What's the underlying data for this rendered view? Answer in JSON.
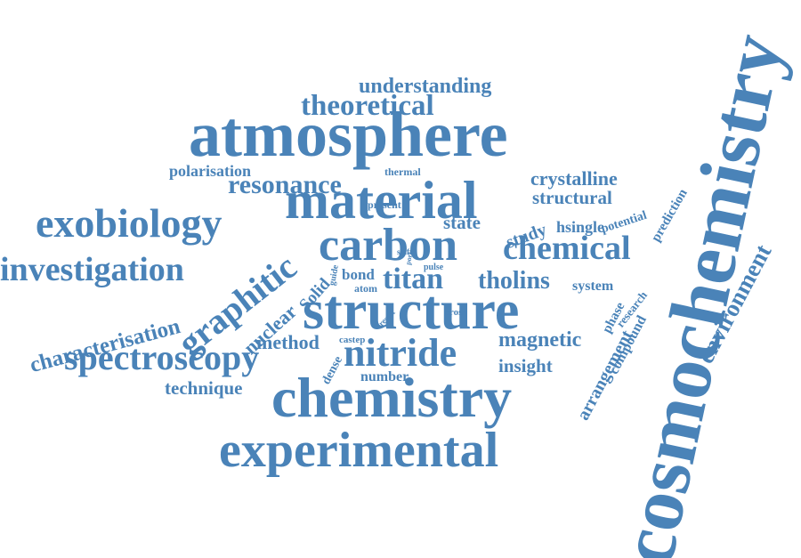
{
  "colors": {
    "word": "#4a83b8",
    "background": "#ffffff"
  },
  "words": {
    "cosmochemistry": "cosmochemistry",
    "atmosphere": "atmosphere",
    "structure": "structure",
    "chemistry": "chemistry",
    "material": "material",
    "carbon": "carbon",
    "experimental": "experimental",
    "exobiology": "exobiology",
    "nitride": "nitride",
    "investigation": "investigation",
    "chemical": "chemical",
    "spectroscopy": "spectroscopy",
    "graphitic": "graphitic",
    "theoretical": "theoretical",
    "titan": "titan",
    "resonance": "resonance",
    "tholins": "tholins",
    "environment": "environment",
    "understanding": "understanding",
    "characterisation": "characterisation",
    "magnetic": "magnetic",
    "crystalline": "crystalline",
    "structural": "structural",
    "method": "method",
    "technique": "technique",
    "nuclear": "nuclear",
    "insight": "insight",
    "arrangement": "arrangement",
    "state": "state",
    "study": "study",
    "polarisation": "polarisation",
    "hsingle": "hsingle",
    "compound": "compound",
    "solid": "Solid",
    "bond": "bond",
    "system": "system",
    "number": "number",
    "prediction": "prediction",
    "potential": "potential",
    "phase": "phase",
    "dense": "dense",
    "research": "research",
    "atom": "atom",
    "thermal": "thermal",
    "present": "present",
    "castep": "castep",
    "cross": "cross",
    "pulse": "pulse",
    "guide": "guide",
    "shift": "shift",
    "result": "result",
    "port": "port"
  }
}
